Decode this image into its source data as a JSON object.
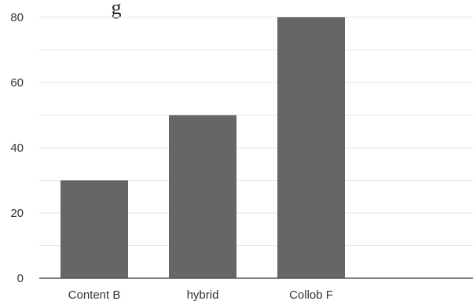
{
  "chart_data": {
    "type": "bar",
    "title_fragment": "g",
    "categories": [
      "Content B",
      "hybrid",
      "Collob F"
    ],
    "values": [
      30,
      50,
      80
    ],
    "ylim": [
      0,
      80
    ],
    "yticks": [
      0,
      20,
      40,
      60,
      80
    ],
    "ytick_labels": [
      "0",
      "20",
      "40",
      "60",
      "80"
    ],
    "minor_grid_step": 10,
    "grid": true,
    "bar_color": "#666666",
    "grid_color": "#e6e6e6",
    "axis_color": "#555555",
    "xlabel": "",
    "ylabel": ""
  }
}
